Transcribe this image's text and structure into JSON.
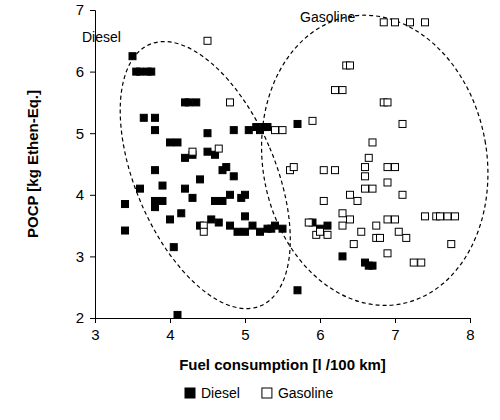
{
  "chart_data": {
    "type": "scatter",
    "xlabel": "Fuel consumption [l /100 km]",
    "ylabel": "POCP [kg Ethen-Eq.]",
    "annotations": [
      "Diesel",
      "Gasoline"
    ],
    "xlim": [
      3,
      8
    ],
    "ylim": [
      2,
      7
    ],
    "xticks": [
      3,
      4,
      5,
      6,
      7,
      8
    ],
    "yticks": [
      2,
      3,
      4,
      5,
      6,
      7
    ],
    "legend": "bottom",
    "series": [
      {
        "name": "Diesel",
        "color": "#000000",
        "marker": "square",
        "x": [
          3.4,
          3.4,
          3.5,
          3.55,
          3.6,
          3.65,
          3.7,
          3.75,
          3.6,
          3.8,
          3.8,
          3.8,
          3.8,
          3.8,
          3.9,
          3.9,
          4.0,
          4.05,
          4.0,
          4.1,
          4.1,
          4.2,
          4.25,
          4.2,
          4.2,
          4.15,
          4.3,
          4.3,
          4.35,
          4.4,
          4.5,
          4.4,
          4.5,
          4.55,
          4.6,
          4.6,
          4.65,
          4.7,
          4.7,
          4.75,
          4.8,
          4.8,
          4.85,
          4.85,
          4.9,
          4.95,
          5.0,
          5.0,
          5.0,
          5.05,
          5.1,
          5.15,
          5.2,
          5.2,
          5.25,
          5.3,
          5.3,
          5.35,
          5.4,
          5.5,
          5.7,
          5.7,
          5.9,
          6.0,
          6.1,
          6.3,
          6.6,
          6.65,
          6.7
        ],
        "values": [
          3.85,
          3.42,
          6.25,
          6.0,
          6.0,
          5.25,
          6.0,
          6.0,
          4.1,
          4.4,
          5.25,
          5.05,
          3.9,
          3.8,
          3.9,
          4.15,
          3.6,
          3.15,
          4.85,
          4.85,
          2.05,
          5.5,
          5.5,
          4.6,
          4.1,
          3.7,
          4.65,
          3.95,
          5.5,
          4.25,
          4.7,
          3.5,
          5.0,
          3.6,
          4.65,
          3.9,
          3.55,
          4.4,
          3.9,
          4.45,
          3.5,
          4.0,
          5.05,
          4.3,
          3.4,
          3.95,
          4.0,
          3.65,
          3.4,
          5.05,
          3.5,
          5.1,
          5.05,
          3.4,
          5.1,
          5.1,
          3.45,
          3.45,
          3.5,
          3.45,
          5.15,
          2.45,
          3.55,
          3.45,
          3.5,
          3.0,
          2.9,
          2.85,
          2.85
        ]
      },
      {
        "name": "Gasoline",
        "color": "#000000",
        "marker": "square-open",
        "x": [
          4.5,
          4.65,
          4.45,
          4.45,
          4.3,
          4.8,
          5.4,
          5.5,
          5.6,
          5.65,
          5.9,
          5.85,
          5.95,
          6.0,
          6.05,
          6.05,
          6.1,
          6.2,
          6.3,
          6.35,
          6.4,
          6.2,
          6.3,
          6.4,
          6.4,
          6.5,
          6.55,
          6.6,
          6.6,
          6.6,
          6.65,
          6.7,
          6.7,
          6.75,
          6.75,
          6.8,
          6.85,
          6.9,
          6.9,
          6.9,
          6.9,
          6.9,
          6.85,
          7.0,
          7.0,
          7.0,
          7.05,
          7.1,
          7.1,
          7.15,
          7.2,
          7.25,
          7.35,
          7.4,
          7.4,
          7.55,
          7.6,
          7.7,
          7.75,
          7.8,
          6.45,
          6.3
        ],
        "values": [
          6.5,
          4.75,
          3.5,
          3.4,
          4.7,
          5.5,
          5.05,
          5.05,
          4.4,
          4.45,
          5.2,
          3.55,
          3.35,
          3.4,
          4.4,
          3.9,
          3.35,
          5.7,
          5.7,
          6.1,
          6.1,
          4.4,
          3.7,
          4.0,
          3.6,
          3.9,
          3.4,
          4.45,
          4.3,
          4.1,
          4.6,
          4.85,
          4.1,
          3.5,
          3.3,
          3.3,
          5.5,
          5.5,
          4.45,
          4.2,
          3.6,
          3.05,
          6.8,
          6.8,
          4.45,
          3.6,
          3.4,
          5.15,
          4.0,
          3.3,
          6.8,
          2.9,
          2.9,
          3.65,
          6.8,
          3.65,
          3.65,
          3.65,
          3.2,
          3.65,
          3.2,
          3.5
        ]
      }
    ]
  }
}
